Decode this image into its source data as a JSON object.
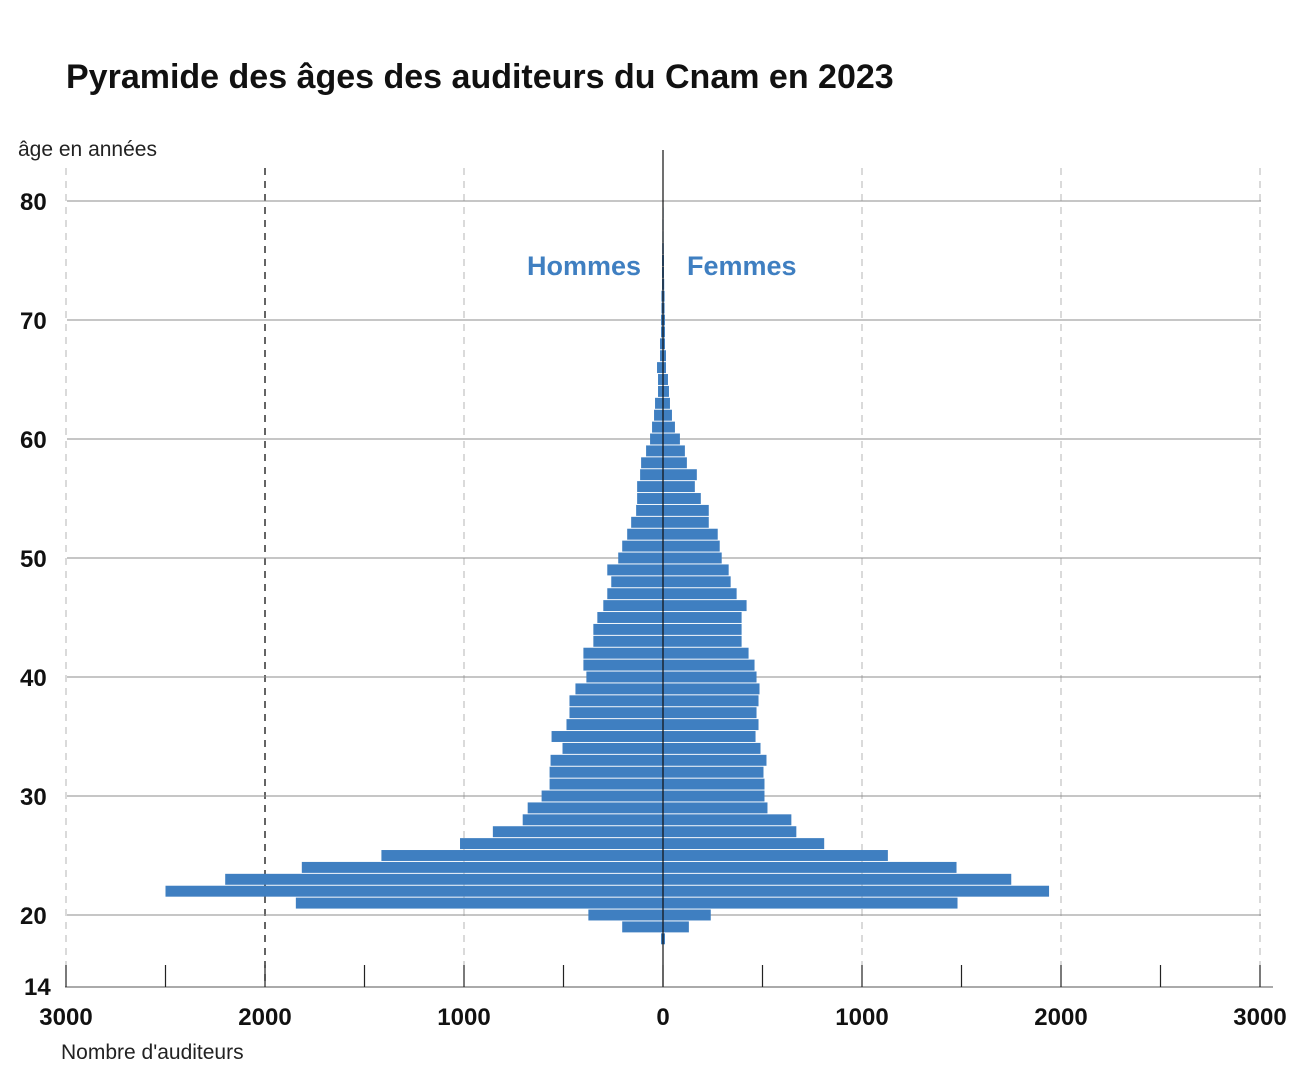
{
  "chart_data": {
    "type": "bar",
    "orientation": "horizontal",
    "title": "Pyramide des âges des auditeurs du Cnam en 2023",
    "ylabel": "âge en années",
    "xlabel": "Nombre d'auditeurs",
    "xlim": [
      -3000,
      3000
    ],
    "ylim": [
      14,
      83
    ],
    "x_ticks": [
      -3000,
      -2000,
      -1000,
      0,
      1000,
      2000,
      3000
    ],
    "x_tick_labels": [
      "3000",
      "2000",
      "1000",
      "0",
      "1000",
      "2000",
      "3000"
    ],
    "y_ticks": [
      20,
      30,
      40,
      50,
      60,
      70,
      80
    ],
    "y_tick_labels": [
      "20",
      "30",
      "40",
      "50",
      "60",
      "70",
      "80"
    ],
    "y_min_label": "14",
    "grid": true,
    "colors": {
      "bars": "#3f7fc1",
      "legend_text": "#3f7fc1",
      "gridline": "#8c8c8c",
      "axis": "#111111"
    },
    "legend": {
      "left": "Hommes",
      "right": "Femmes",
      "placement": "top-center"
    },
    "categories": [
      18,
      19,
      20,
      21,
      22,
      23,
      24,
      25,
      26,
      27,
      28,
      29,
      30,
      31,
      32,
      33,
      34,
      35,
      36,
      37,
      38,
      39,
      40,
      41,
      42,
      43,
      44,
      45,
      46,
      47,
      48,
      49,
      50,
      51,
      52,
      53,
      54,
      55,
      56,
      57,
      58,
      59,
      60,
      61,
      62,
      63,
      64,
      65,
      66,
      67,
      68,
      69,
      70,
      71,
      72,
      73,
      74,
      75,
      76,
      77,
      78,
      79,
      80,
      81,
      82
    ],
    "series": [
      {
        "name": "Hommes",
        "values": [
          10,
          205,
          375,
          1845,
          2500,
          2200,
          1815,
          1415,
          1020,
          855,
          705,
          680,
          610,
          570,
          570,
          565,
          505,
          560,
          485,
          470,
          470,
          440,
          385,
          400,
          400,
          350,
          350,
          330,
          300,
          280,
          260,
          280,
          225,
          205,
          180,
          160,
          135,
          130,
          130,
          115,
          110,
          85,
          65,
          55,
          45,
          40,
          25,
          25,
          30,
          15,
          15,
          10,
          10,
          8,
          8,
          5,
          5,
          5,
          4,
          3,
          3,
          2,
          2,
          2,
          2
        ]
      },
      {
        "name": "Femmes",
        "values": [
          10,
          130,
          240,
          1480,
          1940,
          1750,
          1475,
          1130,
          810,
          670,
          645,
          525,
          510,
          510,
          505,
          520,
          490,
          465,
          480,
          470,
          480,
          485,
          470,
          460,
          430,
          395,
          395,
          395,
          420,
          370,
          340,
          330,
          295,
          285,
          275,
          230,
          230,
          190,
          160,
          170,
          120,
          110,
          85,
          60,
          45,
          35,
          30,
          25,
          15,
          15,
          10,
          10,
          10,
          8,
          8,
          6,
          5,
          5,
          4,
          3,
          3,
          3,
          2,
          2,
          2
        ]
      }
    ]
  }
}
